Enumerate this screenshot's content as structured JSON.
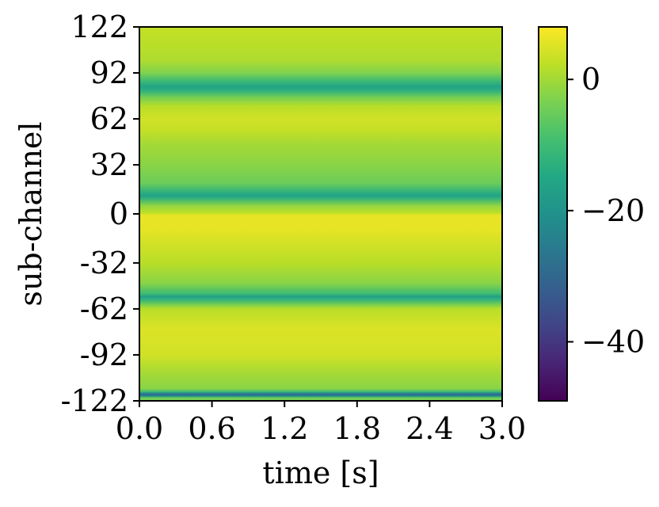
{
  "chart_data": {
    "type": "heatmap",
    "title": "",
    "xlabel": "time [s]",
    "ylabel": "sub-channel",
    "x_ticks": [
      "0.0",
      "0.6",
      "1.2",
      "1.8",
      "2.4",
      "3.0"
    ],
    "y_ticks": [
      "122",
      "92",
      "62",
      "32",
      "0",
      "-32",
      "-62",
      "-92",
      "-122"
    ],
    "xlim": [
      0,
      3
    ],
    "ylim": [
      -122,
      122
    ],
    "colormap": "viridis",
    "colorbar": {
      "range": [
        -49,
        8
      ],
      "ticks": [
        "0",
        "−20",
        "−40"
      ],
      "tick_values": [
        0,
        -20,
        -40
      ]
    },
    "profile_note_values": {
      "sub_channels": [
        122,
        110,
        100,
        92,
        87,
        83,
        80,
        76,
        70,
        62,
        55,
        45,
        32,
        20,
        14,
        12,
        10,
        5,
        1,
        0,
        -1,
        -10,
        -20,
        -32,
        -45,
        -52,
        -54,
        -56,
        -60,
        -62,
        -75,
        -92,
        -105,
        -114,
        -116,
        -117,
        -118,
        -119,
        -120,
        -122
      ],
      "magnitude_db": [
        3,
        2,
        1,
        -3,
        -10,
        -16,
        -12,
        -4,
        2,
        4,
        3,
        0,
        -2,
        -5,
        -13,
        -16,
        -12,
        -1,
        2,
        4,
        6,
        6,
        4,
        2,
        -2,
        -10,
        -17,
        -12,
        -2,
        2,
        5,
        4,
        0,
        -2,
        -10,
        -22,
        -30,
        -20,
        -5,
        -3
      ]
    }
  }
}
